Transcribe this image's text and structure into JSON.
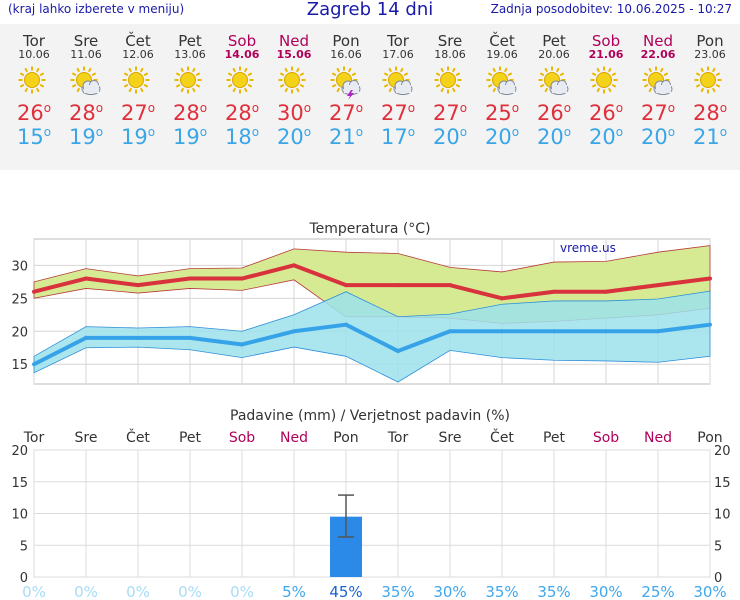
{
  "header": {
    "left_note": "(kraj lahko izberete v meniju)",
    "title": "Zagreb 14 dni",
    "updated": "Zadnja posodobitev: 10.06.2025 - 10:27"
  },
  "forecast": [
    {
      "day": "Tor",
      "date": "10.06",
      "icon": "sun-icon",
      "max": "26",
      "min": "15",
      "weekend": false
    },
    {
      "day": "Sre",
      "date": "11.06",
      "icon": "sun-cloud-icon",
      "max": "28",
      "min": "19",
      "weekend": false
    },
    {
      "day": "Čet",
      "date": "12.06",
      "icon": "sun-icon",
      "max": "27",
      "min": "19",
      "weekend": false
    },
    {
      "day": "Pet",
      "date": "13.06",
      "icon": "sun-icon",
      "max": "28",
      "min": "19",
      "weekend": false
    },
    {
      "day": "Sob",
      "date": "14.06",
      "icon": "sun-icon",
      "max": "28",
      "min": "18",
      "weekend": true
    },
    {
      "day": "Ned",
      "date": "15.06",
      "icon": "sun-icon",
      "max": "30",
      "min": "20",
      "weekend": true
    },
    {
      "day": "Pon",
      "date": "16.06",
      "icon": "sun-cloud-thunder-icon",
      "max": "27",
      "min": "21",
      "weekend": false
    },
    {
      "day": "Tor",
      "date": "17.06",
      "icon": "sun-cloud-icon",
      "max": "27",
      "min": "17",
      "weekend": false
    },
    {
      "day": "Sre",
      "date": "18.06",
      "icon": "sun-icon",
      "max": "27",
      "min": "20",
      "weekend": false
    },
    {
      "day": "Čet",
      "date": "19.06",
      "icon": "sun-cloud-icon",
      "max": "25",
      "min": "20",
      "weekend": false
    },
    {
      "day": "Pet",
      "date": "20.06",
      "icon": "sun-cloud-icon",
      "max": "26",
      "min": "20",
      "weekend": false
    },
    {
      "day": "Sob",
      "date": "21.06",
      "icon": "sun-icon",
      "max": "26",
      "min": "20",
      "weekend": true
    },
    {
      "day": "Ned",
      "date": "22.06",
      "icon": "sun-cloud-icon",
      "max": "27",
      "min": "20",
      "weekend": true
    },
    {
      "day": "Pon",
      "date": "23.06",
      "icon": "sun-icon",
      "max": "28",
      "min": "21",
      "weekend": false
    }
  ],
  "chart_data": [
    {
      "type": "line",
      "title": "Temperatura (°C)",
      "watermark": "vreme.us",
      "x": [
        "10.06",
        "11.06",
        "12.06",
        "13.06",
        "14.06",
        "15.06",
        "16.06",
        "17.06",
        "18.06",
        "19.06",
        "20.06",
        "21.06",
        "22.06",
        "23.06"
      ],
      "ylim": [
        12,
        34
      ],
      "yticks": [
        15,
        20,
        25,
        30
      ],
      "grid": true,
      "series": [
        {
          "values": [
            26,
            28,
            27,
            28,
            28,
            30,
            27,
            27,
            27,
            25,
            26,
            26,
            27,
            28
          ],
          "range_low": [
            25,
            26.5,
            25.8,
            26.5,
            26.2,
            27.8,
            22.2,
            22.2,
            22,
            21.2,
            21.5,
            22,
            22.5,
            23.5
          ],
          "range_high": [
            27.5,
            29.5,
            28.4,
            29.5,
            29.6,
            32.5,
            32,
            31.8,
            29.7,
            29,
            30.5,
            30.6,
            32,
            33
          ],
          "color": "#d8323c",
          "band_color": "#d6ea94"
        },
        {
          "values": [
            15,
            19,
            19,
            19,
            18,
            20,
            21,
            17,
            20,
            20,
            20,
            20,
            20,
            21
          ],
          "range_low": [
            13.7,
            17.5,
            17.6,
            17.2,
            16,
            17.6,
            16.2,
            12.3,
            17.1,
            16,
            15.6,
            15.5,
            15.3,
            16.2
          ],
          "range_high": [
            16.2,
            20.7,
            20.5,
            20.7,
            20,
            22.5,
            26,
            22.2,
            22.6,
            24.1,
            24.6,
            24.6,
            24.9,
            26.1
          ],
          "color": "#36a3e8",
          "band_color": "#9ce2ec"
        }
      ]
    },
    {
      "type": "bar",
      "title": "Padavine (mm) / Verjetnost padavin (%)",
      "categories": [
        "Tor",
        "Sre",
        "Čet",
        "Pet",
        "Sob",
        "Ned",
        "Pon",
        "Tor",
        "Sre",
        "Čet",
        "Pet",
        "Sob",
        "Ned",
        "Pon"
      ],
      "weekend": [
        false,
        false,
        false,
        false,
        true,
        true,
        false,
        false,
        false,
        false,
        false,
        true,
        true,
        false
      ],
      "values": [
        0,
        0,
        0,
        0,
        0,
        0,
        9.5,
        0,
        0,
        0,
        0,
        0,
        0,
        0
      ],
      "error_low": [
        null,
        null,
        null,
        null,
        null,
        null,
        6.3,
        null,
        null,
        null,
        null,
        null,
        null,
        null
      ],
      "error_high": [
        null,
        null,
        null,
        null,
        null,
        null,
        12.9,
        null,
        null,
        null,
        null,
        null,
        null,
        null
      ],
      "probability_labels": [
        "0%",
        "0%",
        "0%",
        "0%",
        "0%",
        "5%",
        "45%",
        "35%",
        "30%",
        "35%",
        "35%",
        "30%",
        "25%",
        "30%"
      ],
      "probability": [
        0,
        0,
        0,
        0,
        0,
        5,
        45,
        35,
        30,
        35,
        35,
        30,
        25,
        30
      ],
      "ylim": [
        0,
        20
      ],
      "yticks": [
        0,
        5,
        10,
        15,
        20
      ],
      "bar_color": "#2b8ae8"
    }
  ]
}
